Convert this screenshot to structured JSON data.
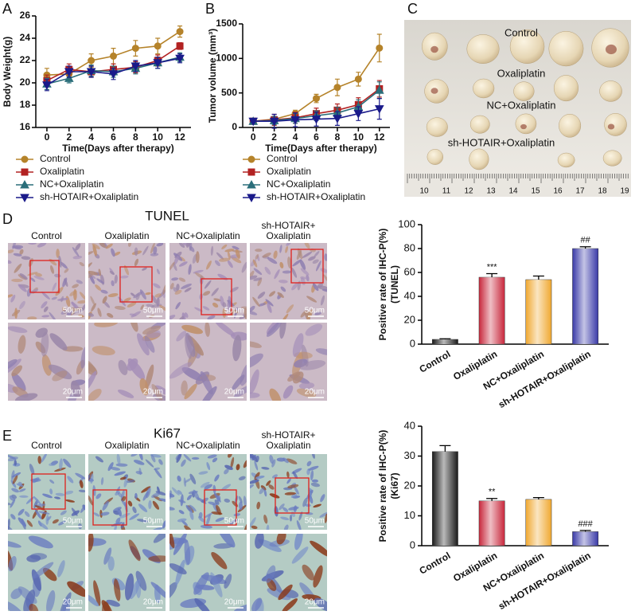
{
  "chart_data": [
    {
      "type": "line",
      "panel_label": "A",
      "ylabel": "Body Weight(g)",
      "xlabel": "Time(Days after therapy)",
      "x": [
        0,
        2,
        4,
        6,
        8,
        10,
        12
      ],
      "xlim": [
        -1,
        13
      ],
      "xticks": [
        0,
        2,
        4,
        6,
        8,
        10,
        12
      ],
      "ylim": [
        16,
        26
      ],
      "yticks": [
        16,
        18,
        20,
        22,
        24,
        26
      ],
      "series": [
        {
          "name": "Control",
          "color": "#b5832a",
          "marker": "circle",
          "values": [
            20.7,
            20.8,
            22.0,
            22.4,
            23.1,
            23.3,
            24.6
          ],
          "errors": [
            0.6,
            0.5,
            0.6,
            0.7,
            0.7,
            0.7,
            0.5
          ]
        },
        {
          "name": "Oxaliplatin",
          "color": "#b22222",
          "marker": "square",
          "values": [
            20.2,
            21.2,
            21.0,
            21.2,
            21.4,
            22.0,
            23.3
          ],
          "errors": [
            0.5,
            0.5,
            0.5,
            0.5,
            0.5,
            0.5,
            0.3
          ]
        },
        {
          "name": "NC+Oxaliplatin",
          "color": "#2a6e7a",
          "marker": "triangle-up",
          "values": [
            19.9,
            20.4,
            21.1,
            21.0,
            21.3,
            21.8,
            22.3
          ],
          "errors": [
            0.5,
            0.4,
            0.5,
            0.5,
            0.5,
            0.5,
            0.4
          ]
        },
        {
          "name": "sh-HOTAIR+Oxaliplatin",
          "color": "#1a1a8a",
          "marker": "triangle-down",
          "values": [
            19.8,
            21.0,
            21.0,
            20.8,
            21.5,
            21.8,
            22.2
          ],
          "errors": [
            0.5,
            0.5,
            0.5,
            0.5,
            0.5,
            0.5,
            0.4
          ]
        }
      ]
    },
    {
      "type": "line",
      "panel_label": "B",
      "ylabel": "Tumor volume (mm³)",
      "xlabel": "Time(Days after therapy)",
      "x": [
        0,
        2,
        4,
        6,
        8,
        10,
        12
      ],
      "xlim": [
        -1,
        13
      ],
      "xticks": [
        0,
        2,
        4,
        6,
        8,
        10,
        12
      ],
      "ylim": [
        0,
        1500
      ],
      "yticks": [
        0,
        500,
        1000,
        1500
      ],
      "series": [
        {
          "name": "Control",
          "color": "#b5832a",
          "marker": "circle",
          "values": [
            90,
            120,
            200,
            420,
            580,
            700,
            1150
          ],
          "errors": [
            20,
            40,
            50,
            60,
            120,
            100,
            200
          ]
        },
        {
          "name": "Oxaliplatin",
          "color": "#b22222",
          "marker": "square",
          "values": [
            90,
            110,
            140,
            200,
            250,
            330,
            560
          ],
          "errors": [
            20,
            80,
            80,
            80,
            90,
            100,
            120
          ]
        },
        {
          "name": "NC+Oxaliplatin",
          "color": "#2a6e7a",
          "marker": "triangle-up",
          "values": [
            90,
            100,
            130,
            170,
            210,
            300,
            540
          ],
          "errors": [
            20,
            60,
            70,
            70,
            80,
            100,
            120
          ]
        },
        {
          "name": "sh-HOTAIR+Oxaliplatin",
          "color": "#1a1a8a",
          "marker": "triangle-down",
          "values": [
            90,
            90,
            110,
            120,
            130,
            200,
            270
          ],
          "errors": [
            20,
            100,
            100,
            100,
            100,
            100,
            150
          ]
        }
      ]
    },
    {
      "type": "bar",
      "ylabel": [
        "Positive rate of IHC-P(%)",
        "(TUNEL)"
      ],
      "categories": [
        "Control",
        "Oxaliplatin",
        "NC+Oxaliplatin",
        "sh-HOTAIR+Oxaliplatin"
      ],
      "values": [
        4,
        56,
        54,
        80
      ],
      "errors": [
        0.5,
        3,
        3,
        1.5
      ],
      "annotations": [
        null,
        "***",
        null,
        "##"
      ],
      "colors": [
        "#1a1a1a",
        "#c8283c",
        "#f0a830",
        "#3a3aa8"
      ],
      "ylim": [
        0,
        100
      ],
      "yticks": [
        0,
        20,
        40,
        60,
        80,
        100
      ]
    },
    {
      "type": "bar",
      "ylabel": [
        "Positive rate of IHC-P(%)",
        "(Ki67)"
      ],
      "categories": [
        "Control",
        "Oxaliplatin",
        "NC+Oxaliplatin",
        "sh-HOTAIR+Oxaliplatin"
      ],
      "values": [
        31.5,
        15,
        15.5,
        4.7
      ],
      "errors": [
        2,
        0.8,
        0.6,
        0.4
      ],
      "annotations": [
        null,
        "**",
        null,
        "###"
      ],
      "colors": [
        "#1a1a1a",
        "#c8283c",
        "#f0a830",
        "#3a3aa8"
      ],
      "ylim": [
        0,
        40
      ],
      "yticks": [
        0,
        10,
        20,
        30,
        40
      ]
    }
  ],
  "photo": {
    "panel_label": "C",
    "labels": [
      "Control",
      "Oxaliplatin",
      "NC+Oxaliplatin",
      "sh-HOTAIR+Oxaliplatin"
    ],
    "ruler": [
      "10",
      "11",
      "12",
      "13",
      "14",
      "15",
      "16",
      "17",
      "18",
      "19"
    ]
  },
  "micrographs": [
    {
      "panel_label": "D",
      "title": "TUNEL",
      "columns": [
        [
          "Control"
        ],
        [
          "Oxaliplatin"
        ],
        [
          "NC+Oxaliplatin"
        ],
        [
          "sh-HOTAIR+",
          "Oxaliplatin"
        ]
      ],
      "scale_top": "50μm",
      "scale_bottom": "20μm"
    },
    {
      "panel_label": "E",
      "title": "Ki67",
      "columns": [
        [
          "Control"
        ],
        [
          "Oxaliplatin"
        ],
        [
          "NC+Oxaliplatin"
        ],
        [
          "sh-HOTAIR+",
          "Oxaliplatin"
        ]
      ],
      "scale_top": "50μm",
      "scale_bottom": "20μm"
    }
  ]
}
